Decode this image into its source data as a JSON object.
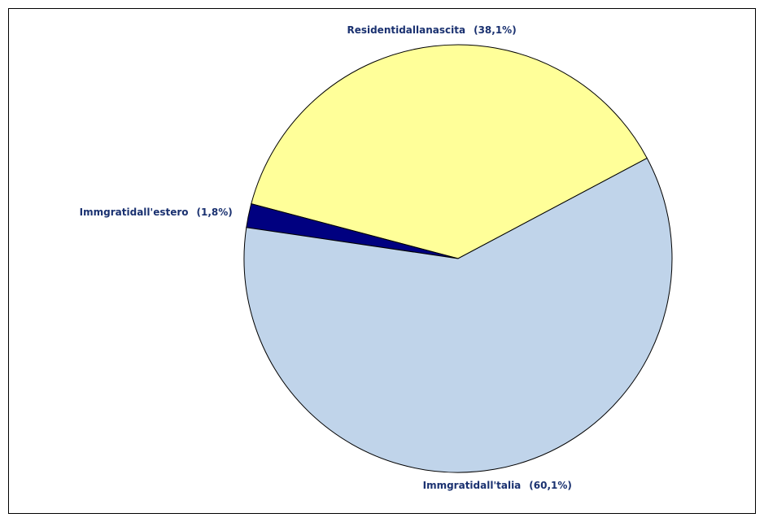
{
  "chart_data": {
    "type": "pie",
    "categories": [
      "Residentidallanascita",
      "Immgratidall'estero",
      "Immgratidall'talia"
    ],
    "values": [
      38.1,
      1.8,
      60.1
    ],
    "value_labels": [
      "(38,1%)",
      "(1,8%)",
      "(60,1%)"
    ],
    "colors": [
      "#ffff99",
      "#000080",
      "#c0d4ea"
    ]
  }
}
